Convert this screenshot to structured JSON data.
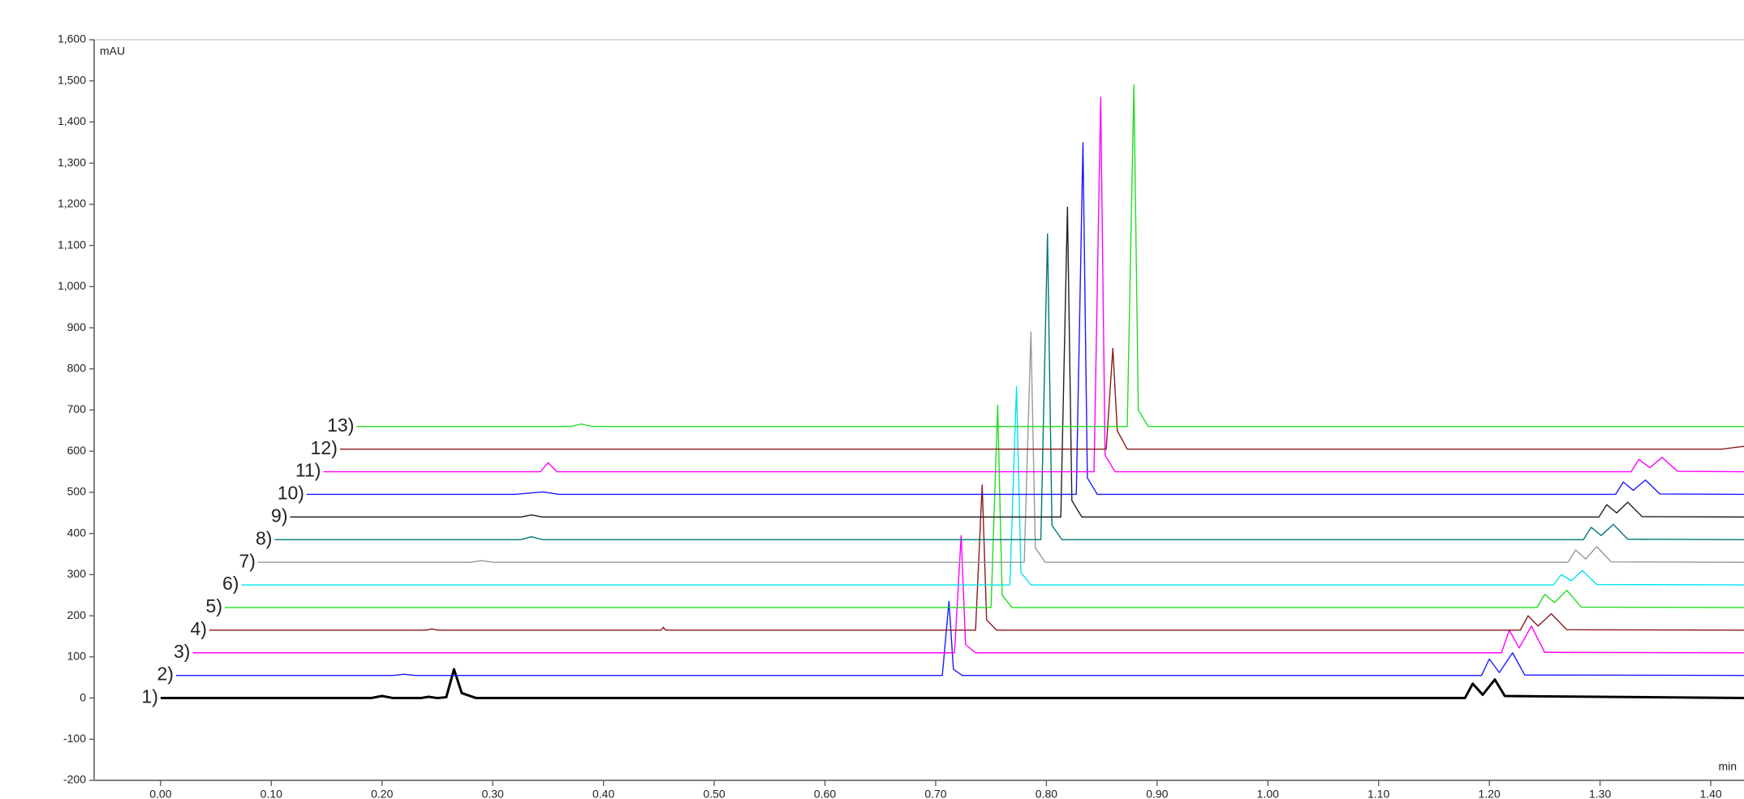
{
  "chart_data": {
    "type": "line",
    "y_label": "mAU",
    "x_label": "min",
    "xlim": [
      -0.06,
      1.43
    ],
    "ylim": [
      -200,
      1600
    ],
    "xticks": [
      {
        "value": 0,
        "label": "0.00"
      },
      {
        "value": 0.1,
        "label": "0.10"
      },
      {
        "value": 0.2,
        "label": "0.20"
      },
      {
        "value": 0.3,
        "label": "0.30"
      },
      {
        "value": 0.4,
        "label": "0.40"
      },
      {
        "value": 0.5,
        "label": "0.50"
      },
      {
        "value": 0.6,
        "label": "0.60"
      },
      {
        "value": 0.7,
        "label": "0.70"
      },
      {
        "value": 0.8,
        "label": "0.80"
      },
      {
        "value": 0.9,
        "label": "0.90"
      },
      {
        "value": 1.0,
        "label": "1.00"
      },
      {
        "value": 1.1,
        "label": "1.10"
      },
      {
        "value": 1.2,
        "label": "1.20"
      },
      {
        "value": 1.3,
        "label": "1.30"
      },
      {
        "value": 1.4,
        "label": "1.40"
      }
    ],
    "yticks": [
      -200,
      -100,
      0,
      100,
      200,
      300,
      400,
      500,
      600,
      700,
      800,
      900,
      {
        "value": 1000,
        "label": "1,000"
      },
      {
        "value": 1100,
        "label": "1,100"
      },
      {
        "value": 1200,
        "label": "1,200"
      },
      {
        "value": 1300,
        "label": "1,300"
      },
      {
        "value": 1400,
        "label": "1,400"
      },
      {
        "value": 1500,
        "label": "1,500"
      },
      {
        "value": 1600,
        "label": "1,600"
      }
    ],
    "series": [
      {
        "name": "1)",
        "color": "#000000",
        "x": [
          0.0,
          0.19,
          0.2,
          0.21,
          0.235,
          0.242,
          0.25,
          0.258,
          0.265,
          0.272,
          0.285,
          1.178,
          1.185,
          1.194,
          1.205,
          1.214,
          1.43
        ],
        "values": [
          0,
          0,
          5,
          0,
          0,
          3,
          0,
          2,
          70,
          12,
          0,
          0,
          35,
          8,
          45,
          5,
          0
        ]
      },
      {
        "name": "2)",
        "color": "#1a1aff",
        "x": [
          0.014,
          0.21,
          0.22,
          0.23,
          0.706,
          0.712,
          0.716,
          0.724,
          1.193,
          1.2,
          1.209,
          1.221,
          1.232,
          1.43
        ],
        "values": [
          55,
          55,
          58,
          55,
          55,
          235,
          70,
          55,
          55,
          95,
          62,
          110,
          56,
          55
        ]
      },
      {
        "name": "3)",
        "color": "#ff00ff",
        "x": [
          0.029,
          0.717,
          0.723,
          0.727,
          0.736,
          1.211,
          1.218,
          1.227,
          1.238,
          1.25,
          1.43
        ],
        "values": [
          110,
          110,
          395,
          130,
          110,
          110,
          165,
          122,
          175,
          111,
          110
        ]
      },
      {
        "name": "4)",
        "color": "#8b1a1a",
        "x": [
          0.044,
          0.24,
          0.245,
          0.25,
          0.452,
          0.454,
          0.456,
          0.736,
          0.742,
          0.746,
          0.755,
          1.228,
          1.235,
          1.244,
          1.256,
          1.27,
          1.43
        ],
        "values": [
          165,
          165,
          168,
          165,
          165,
          172,
          165,
          165,
          518,
          190,
          165,
          165,
          200,
          175,
          205,
          166,
          165
        ]
      },
      {
        "name": "5)",
        "color": "#22dd22",
        "x": [
          0.058,
          0.75,
          0.756,
          0.76,
          0.769,
          1.243,
          1.25,
          1.259,
          1.27,
          1.283,
          1.43
        ],
        "values": [
          220,
          220,
          712,
          250,
          220,
          220,
          252,
          232,
          262,
          221,
          220
        ]
      },
      {
        "name": "6)",
        "color": "#00e5ee",
        "x": [
          0.073,
          0.767,
          0.773,
          0.777,
          0.786,
          1.258,
          1.265,
          1.274,
          1.284,
          1.297,
          1.43
        ],
        "values": [
          275,
          275,
          757,
          305,
          275,
          275,
          300,
          285,
          310,
          276,
          275
        ]
      },
      {
        "name": "7)",
        "color": "#999999",
        "x": [
          0.088,
          0.28,
          0.29,
          0.3,
          0.78,
          0.786,
          0.79,
          0.799,
          1.271,
          1.278,
          1.287,
          1.297,
          1.31,
          1.43
        ],
        "values": [
          330,
          330,
          334,
          330,
          330,
          890,
          365,
          330,
          330,
          360,
          338,
          368,
          331,
          330
        ]
      },
      {
        "name": "8)",
        "color": "#007777",
        "x": [
          0.103,
          0.325,
          0.335,
          0.345,
          0.795,
          0.801,
          0.805,
          0.814,
          1.285,
          1.292,
          1.301,
          1.312,
          1.325,
          1.43
        ],
        "values": [
          385,
          385,
          392,
          385,
          385,
          1128,
          420,
          385,
          385,
          415,
          395,
          422,
          386,
          385
        ]
      },
      {
        "name": "9)",
        "color": "#222222",
        "x": [
          0.117,
          0.325,
          0.335,
          0.345,
          0.813,
          0.819,
          0.823,
          0.832,
          1.299,
          1.306,
          1.315,
          1.325,
          1.338,
          1.43
        ],
        "values": [
          440,
          440,
          445,
          440,
          440,
          1193,
          480,
          440,
          440,
          470,
          450,
          476,
          441,
          440
        ]
      },
      {
        "name": "10)",
        "color": "#1a1aff",
        "x": [
          0.132,
          0.32,
          0.345,
          0.36,
          0.827,
          0.833,
          0.837,
          0.846,
          1.314,
          1.321,
          1.33,
          1.341,
          1.354,
          1.43
        ],
        "values": [
          495,
          495,
          501,
          495,
          495,
          1350,
          535,
          495,
          495,
          525,
          505,
          530,
          496,
          495
        ]
      },
      {
        "name": "11)",
        "color": "#ff00ff",
        "x": [
          0.147,
          0.343,
          0.35,
          0.358,
          0.843,
          0.849,
          0.853,
          0.862,
          1.328,
          1.335,
          1.345,
          1.356,
          1.37,
          1.43
        ],
        "values": [
          550,
          550,
          572,
          550,
          550,
          1460,
          590,
          550,
          550,
          580,
          560,
          585,
          551,
          550
        ]
      },
      {
        "name": "12)",
        "color": "#8b1a1a",
        "x": [
          0.162,
          0.854,
          0.86,
          0.864,
          0.873,
          1.41,
          1.43
        ],
        "values": [
          605,
          605,
          850,
          650,
          605,
          605,
          612
        ]
      },
      {
        "name": "13)",
        "color": "#22dd22",
        "x": [
          0.177,
          0.37,
          0.38,
          0.39,
          0.873,
          0.879,
          0.883,
          0.892,
          1.43
        ],
        "values": [
          660,
          660,
          666,
          660,
          660,
          1490,
          700,
          660,
          660
        ]
      }
    ]
  }
}
